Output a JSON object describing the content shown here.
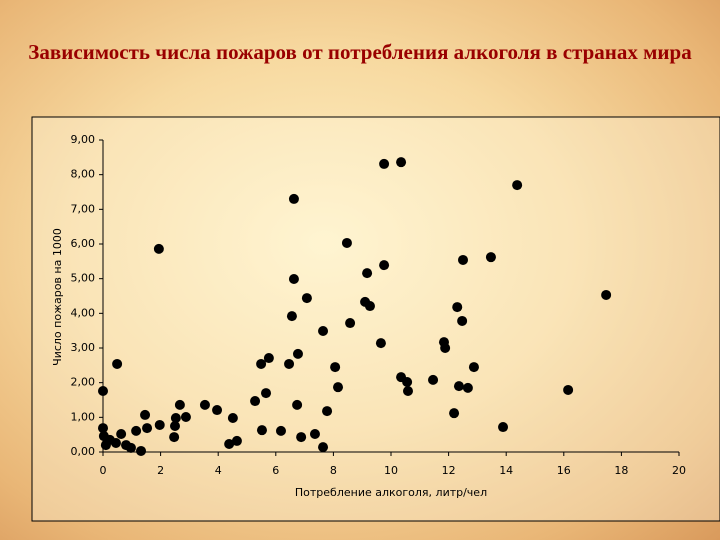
{
  "chart_data": {
    "type": "scatter",
    "title": "Зависимость числа пожаров от потребления алкоголя в странах мира",
    "x_label": "Потребление алкоголя, литр/чел",
    "y_label": "Число пожаров на 1000",
    "color": "#000000",
    "x": [
      0,
      0,
      0.03,
      0.1,
      0.24,
      0.45,
      0.49,
      0.63,
      0.8,
      0.97,
      1.15,
      1.32,
      1.46,
      1.53,
      1.94,
      1.97,
      2.47,
      2.5,
      2.53,
      2.67,
      2.88,
      3.54,
      3.96,
      4.38,
      4.51,
      4.65,
      5.28,
      5.49,
      5.52,
      5.66,
      5.76,
      6.18,
      6.46,
      6.56,
      6.63,
      6.63,
      6.74,
      6.77,
      6.88,
      7.08,
      7.36,
      7.64,
      7.64,
      7.78,
      8.06,
      8.16,
      8.47,
      8.58,
      9.1,
      9.17,
      9.27,
      9.65,
      9.76,
      9.76,
      10.35,
      10.35,
      10.56,
      10.59,
      11.46,
      11.84,
      11.88,
      12.19,
      12.3,
      12.36,
      12.47,
      12.5,
      12.67,
      12.88,
      13.47,
      13.89,
      14.38,
      16.15,
      17.47
    ],
    "values": [
      1.76,
      0.69,
      0.46,
      0.2,
      0.35,
      0.26,
      2.54,
      0.52,
      0.2,
      0.12,
      0.61,
      0.03,
      1.07,
      0.69,
      5.86,
      0.78,
      0.43,
      0.75,
      0.98,
      1.36,
      1.01,
      1.36,
      1.21,
      0.23,
      0.98,
      0.32,
      1.47,
      2.54,
      0.63,
      1.7,
      2.71,
      0.61,
      2.54,
      3.92,
      7.3,
      4.99,
      1.36,
      2.83,
      0.43,
      4.44,
      0.52,
      3.49,
      0.14,
      1.18,
      2.45,
      1.87,
      6.03,
      3.72,
      4.33,
      5.16,
      4.21,
      3.14,
      5.39,
      8.31,
      8.36,
      2.16,
      2.02,
      1.76,
      2.08,
      3.17,
      3.0,
      1.12,
      4.18,
      1.9,
      3.78,
      5.54,
      1.85,
      2.45,
      5.62,
      0.72,
      7.7,
      1.79,
      4.53
    ],
    "xlim": [
      0,
      20
    ],
    "xticks": [
      0,
      2,
      4,
      6,
      8,
      10,
      12,
      14,
      16,
      18,
      20
    ],
    "ylim": [
      0,
      9
    ],
    "yticks": [
      {
        "value": 0,
        "label": "0,00"
      },
      {
        "value": 1,
        "label": "1,00"
      },
      {
        "value": 2,
        "label": "2,00"
      },
      {
        "value": 3,
        "label": "3,00"
      },
      {
        "value": 4,
        "label": "4,00"
      },
      {
        "value": 5,
        "label": "5,00"
      },
      {
        "value": 6,
        "label": "6,00"
      },
      {
        "value": 7,
        "label": "7,00"
      },
      {
        "value": 8,
        "label": "8,00"
      },
      {
        "value": 9,
        "label": "9,00"
      }
    ]
  }
}
